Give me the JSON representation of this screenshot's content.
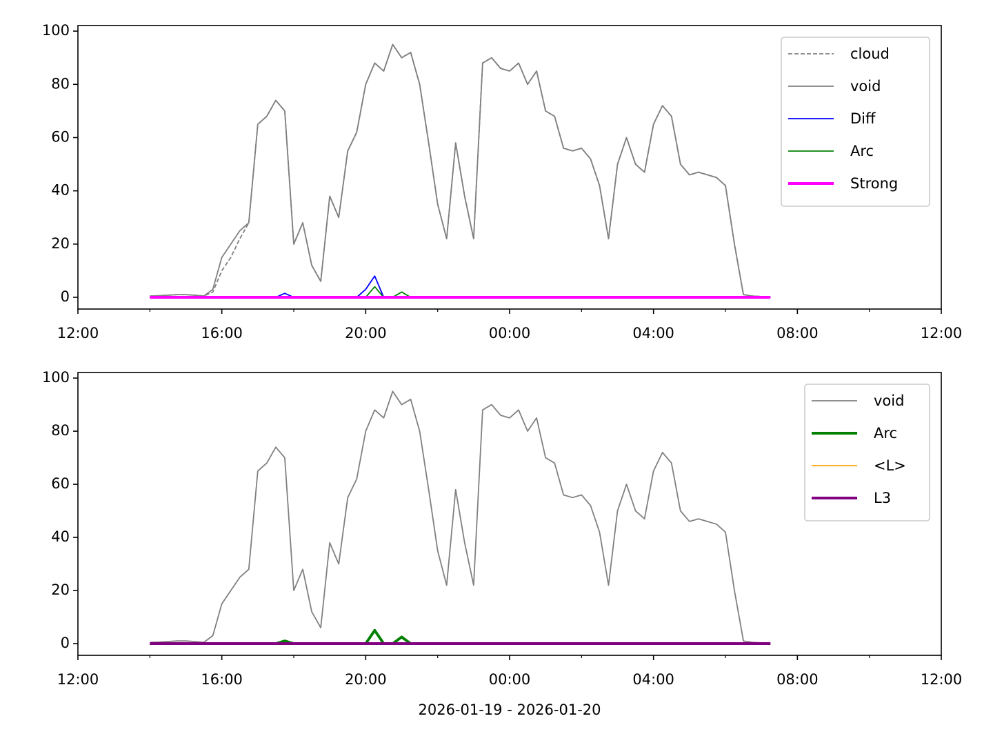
{
  "chart_data": [
    {
      "type": "line",
      "x": [
        "2026-01-19T14:00",
        "2026-01-19T14:15",
        "2026-01-19T14:30",
        "2026-01-19T14:45",
        "2026-01-19T15:00",
        "2026-01-19T15:15",
        "2026-01-19T15:30",
        "2026-01-19T15:45",
        "2026-01-19T16:00",
        "2026-01-19T16:15",
        "2026-01-19T16:30",
        "2026-01-19T16:45",
        "2026-01-19T17:00",
        "2026-01-19T17:15",
        "2026-01-19T17:30",
        "2026-01-19T17:45",
        "2026-01-19T18:00",
        "2026-01-19T18:15",
        "2026-01-19T18:30",
        "2026-01-19T18:45",
        "2026-01-19T19:00",
        "2026-01-19T19:15",
        "2026-01-19T19:30",
        "2026-01-19T19:45",
        "2026-01-19T20:00",
        "2026-01-19T20:15",
        "2026-01-19T20:30",
        "2026-01-19T20:45",
        "2026-01-19T21:00",
        "2026-01-19T21:15",
        "2026-01-19T21:30",
        "2026-01-19T21:45",
        "2026-01-19T22:00",
        "2026-01-19T22:15",
        "2026-01-19T22:30",
        "2026-01-19T22:45",
        "2026-01-19T23:00",
        "2026-01-19T23:15",
        "2026-01-19T23:30",
        "2026-01-19T23:45",
        "2026-01-20T00:00",
        "2026-01-20T00:15",
        "2026-01-20T00:30",
        "2026-01-20T00:45",
        "2026-01-20T01:00",
        "2026-01-20T01:15",
        "2026-01-20T01:30",
        "2026-01-20T01:45",
        "2026-01-20T02:00",
        "2026-01-20T02:15",
        "2026-01-20T02:30",
        "2026-01-20T02:45",
        "2026-01-20T03:00",
        "2026-01-20T03:15",
        "2026-01-20T03:30",
        "2026-01-20T03:45",
        "2026-01-20T04:00",
        "2026-01-20T04:15",
        "2026-01-20T04:30",
        "2026-01-20T04:45",
        "2026-01-20T05:00",
        "2026-01-20T05:15",
        "2026-01-20T05:30",
        "2026-01-20T05:45",
        "2026-01-20T06:00",
        "2026-01-20T06:15",
        "2026-01-20T06:30",
        "2026-01-20T06:45",
        "2026-01-20T07:00",
        "2026-01-20T07:15"
      ],
      "series": [
        {
          "name": "cloud",
          "color": "#808080",
          "linestyle": "dashed",
          "linewidth": 1.8,
          "values": [
            0.5,
            0.6,
            0.8,
            1,
            1,
            0.8,
            0.5,
            2,
            10,
            15,
            22,
            28,
            65,
            68,
            74,
            70,
            20,
            28,
            12,
            6,
            38,
            30,
            55,
            62,
            80,
            88,
            85,
            95,
            90,
            92,
            80,
            58,
            35,
            22,
            58,
            38,
            22,
            88,
            90,
            86,
            85,
            88,
            80,
            85,
            70,
            68,
            56,
            55,
            56,
            52,
            42,
            22,
            50,
            60,
            50,
            47,
            65,
            72,
            68,
            50,
            46,
            47,
            46,
            45,
            42,
            20,
            1,
            0.5,
            0.3,
            0.3
          ]
        },
        {
          "name": "void",
          "color": "#808080",
          "linestyle": "solid",
          "linewidth": 1.8,
          "values": [
            0.5,
            0.6,
            0.8,
            1,
            1,
            0.8,
            0.5,
            3,
            15,
            20,
            25,
            28,
            65,
            68,
            74,
            70,
            20,
            28,
            12,
            6,
            38,
            30,
            55,
            62,
            80,
            88,
            85,
            95,
            90,
            92,
            80,
            58,
            35,
            22,
            58,
            38,
            22,
            88,
            90,
            86,
            85,
            88,
            80,
            85,
            70,
            68,
            56,
            55,
            56,
            52,
            42,
            22,
            50,
            60,
            50,
            47,
            65,
            72,
            68,
            50,
            46,
            47,
            46,
            45,
            42,
            20,
            1,
            0.5,
            0.3,
            0.3
          ]
        },
        {
          "name": "Diff",
          "color": "#0000ff",
          "linestyle": "solid",
          "linewidth": 1.8,
          "values": [
            0,
            0,
            0,
            0,
            0,
            0,
            0,
            0,
            0,
            0,
            0,
            0,
            0,
            0,
            0,
            1.5,
            0,
            0,
            0,
            0,
            0,
            0,
            0,
            0,
            3,
            8,
            0,
            0,
            0,
            0,
            0,
            0,
            0,
            0,
            0,
            0,
            0,
            0,
            0,
            0,
            0,
            0,
            0,
            0,
            0,
            0,
            0,
            0,
            0,
            0,
            0,
            0,
            0,
            0,
            0,
            0,
            0,
            0,
            0,
            0,
            0,
            0,
            0,
            0,
            0,
            0,
            0,
            0,
            0,
            0
          ]
        },
        {
          "name": "Arc",
          "color": "#008000",
          "linestyle": "solid",
          "linewidth": 1.8,
          "values": [
            0,
            0,
            0,
            0,
            0,
            0,
            0,
            0,
            0,
            0,
            0,
            0,
            0,
            0,
            0,
            0,
            0,
            0,
            0,
            0,
            0,
            0,
            0,
            0,
            0,
            4,
            0,
            0,
            2,
            0,
            0,
            0,
            0,
            0,
            0,
            0,
            0,
            0,
            0,
            0,
            0,
            0,
            0,
            0,
            0,
            0,
            0,
            0,
            0,
            0,
            0,
            0,
            0,
            0,
            0,
            0,
            0,
            0,
            0,
            0,
            0,
            0,
            0,
            0,
            0,
            0,
            0,
            0,
            0,
            0
          ]
        },
        {
          "name": "Strong",
          "color": "#ff00ff",
          "linestyle": "solid",
          "linewidth": 4,
          "values": [
            0,
            0,
            0,
            0,
            0,
            0,
            0,
            0,
            0,
            0,
            0,
            0,
            0,
            0,
            0,
            0,
            0,
            0,
            0,
            0,
            0,
            0,
            0,
            0,
            0,
            0,
            0,
            0,
            0,
            0,
            0,
            0,
            0,
            0,
            0,
            0,
            0,
            0,
            0,
            0,
            0,
            0,
            0,
            0,
            0,
            0,
            0,
            0,
            0,
            0,
            0,
            0,
            0,
            0,
            0,
            0,
            0,
            0,
            0,
            0,
            0,
            0,
            0,
            0,
            0,
            0,
            0,
            0,
            0,
            0
          ]
        }
      ],
      "xlim": [
        "2026-01-19T12:00",
        "2026-01-20T12:00"
      ],
      "xticks": [
        {
          "value": "2026-01-19T12:00",
          "label": "12:00"
        },
        {
          "value": "2026-01-19T16:00",
          "label": "16:00"
        },
        {
          "value": "2026-01-19T20:00",
          "label": "20:00"
        },
        {
          "value": "2026-01-20T00:00",
          "label": "00:00"
        },
        {
          "value": "2026-01-20T04:00",
          "label": "04:00"
        },
        {
          "value": "2026-01-20T08:00",
          "label": "08:00"
        },
        {
          "value": "2026-01-20T12:00",
          "label": "12:00"
        }
      ],
      "xminorticks": [
        "2026-01-19T14:00",
        "2026-01-19T18:00",
        "2026-01-19T22:00",
        "2026-01-20T02:00",
        "2026-01-20T06:00",
        "2026-01-20T10:00"
      ],
      "ylim": [
        -4.4,
        102.1
      ],
      "yticks": [
        0,
        20,
        40,
        60,
        80,
        100
      ],
      "legend": "upper right"
    },
    {
      "type": "line",
      "x": [
        "2026-01-19T14:00",
        "2026-01-19T14:15",
        "2026-01-19T14:30",
        "2026-01-19T14:45",
        "2026-01-19T15:00",
        "2026-01-19T15:15",
        "2026-01-19T15:30",
        "2026-01-19T15:45",
        "2026-01-19T16:00",
        "2026-01-19T16:15",
        "2026-01-19T16:30",
        "2026-01-19T16:45",
        "2026-01-19T17:00",
        "2026-01-19T17:15",
        "2026-01-19T17:30",
        "2026-01-19T17:45",
        "2026-01-19T18:00",
        "2026-01-19T18:15",
        "2026-01-19T18:30",
        "2026-01-19T18:45",
        "2026-01-19T19:00",
        "2026-01-19T19:15",
        "2026-01-19T19:30",
        "2026-01-19T19:45",
        "2026-01-19T20:00",
        "2026-01-19T20:15",
        "2026-01-19T20:30",
        "2026-01-19T20:45",
        "2026-01-19T21:00",
        "2026-01-19T21:15",
        "2026-01-19T21:30",
        "2026-01-19T21:45",
        "2026-01-19T22:00",
        "2026-01-19T22:15",
        "2026-01-19T22:30",
        "2026-01-19T22:45",
        "2026-01-19T23:00",
        "2026-01-19T23:15",
        "2026-01-19T23:30",
        "2026-01-19T23:45",
        "2026-01-20T00:00",
        "2026-01-20T00:15",
        "2026-01-20T00:30",
        "2026-01-20T00:45",
        "2026-01-20T01:00",
        "2026-01-20T01:15",
        "2026-01-20T01:30",
        "2026-01-20T01:45",
        "2026-01-20T02:00",
        "2026-01-20T02:15",
        "2026-01-20T02:30",
        "2026-01-20T02:45",
        "2026-01-20T03:00",
        "2026-01-20T03:15",
        "2026-01-20T03:30",
        "2026-01-20T03:45",
        "2026-01-20T04:00",
        "2026-01-20T04:15",
        "2026-01-20T04:30",
        "2026-01-20T04:45",
        "2026-01-20T05:00",
        "2026-01-20T05:15",
        "2026-01-20T05:30",
        "2026-01-20T05:45",
        "2026-01-20T06:00",
        "2026-01-20T06:15",
        "2026-01-20T06:30",
        "2026-01-20T06:45",
        "2026-01-20T07:00",
        "2026-01-20T07:15"
      ],
      "series": [
        {
          "name": "void",
          "color": "#808080",
          "linestyle": "solid",
          "linewidth": 1.8,
          "values": [
            0.5,
            0.6,
            0.8,
            1,
            1,
            0.8,
            0.5,
            3,
            15,
            20,
            25,
            28,
            65,
            68,
            74,
            70,
            20,
            28,
            12,
            6,
            38,
            30,
            55,
            62,
            80,
            88,
            85,
            95,
            90,
            92,
            80,
            58,
            35,
            22,
            58,
            38,
            22,
            88,
            90,
            86,
            85,
            88,
            80,
            85,
            70,
            68,
            56,
            55,
            56,
            52,
            42,
            22,
            50,
            60,
            50,
            47,
            65,
            72,
            68,
            50,
            46,
            47,
            46,
            45,
            42,
            20,
            1,
            0.5,
            0.3,
            0.3
          ]
        },
        {
          "name": "Arc",
          "color": "#008000",
          "linestyle": "solid",
          "linewidth": 4,
          "values": [
            0,
            0,
            0,
            0,
            0,
            0,
            0,
            0,
            0,
            0,
            0,
            0,
            0,
            0,
            0,
            1,
            0,
            0,
            0,
            0,
            0,
            0,
            0,
            0,
            0,
            5,
            0,
            0,
            2.5,
            0,
            0,
            0,
            0,
            0,
            0,
            0,
            0,
            0,
            0,
            0,
            0,
            0,
            0,
            0,
            0,
            0,
            0,
            0,
            0,
            0,
            0,
            0,
            0,
            0,
            0,
            0,
            0,
            0,
            0,
            0,
            0,
            0,
            0,
            0,
            0,
            0,
            0,
            0,
            0,
            0
          ]
        },
        {
          "name": "<L>",
          "color": "#ffa500",
          "linestyle": "solid",
          "linewidth": 1.8,
          "values": [
            0,
            0,
            0,
            0,
            0,
            0,
            0,
            0,
            0,
            0,
            0,
            0,
            0,
            0,
            0,
            0,
            0,
            0,
            0,
            0,
            0,
            0,
            0,
            0,
            0,
            0,
            0,
            0,
            0,
            0,
            0,
            0,
            0,
            0,
            0,
            0,
            0,
            0,
            0,
            0,
            0,
            0,
            0,
            0,
            0,
            0,
            0,
            0,
            0,
            0,
            0,
            0,
            0,
            0,
            0,
            0,
            0,
            0,
            0,
            0,
            0,
            0,
            0,
            0,
            0,
            0,
            0,
            0,
            0,
            0
          ]
        },
        {
          "name": "L3",
          "color": "#800080",
          "linestyle": "solid",
          "linewidth": 4,
          "values": [
            0,
            0,
            0,
            0,
            0,
            0,
            0,
            0,
            0,
            0,
            0,
            0,
            0,
            0,
            0,
            0,
            0,
            0,
            0,
            0,
            0,
            0,
            0,
            0,
            0,
            0,
            0,
            0,
            0,
            0,
            0,
            0,
            0,
            0,
            0,
            0,
            0,
            0,
            0,
            0,
            0,
            0,
            0,
            0,
            0,
            0,
            0,
            0,
            0,
            0,
            0,
            0,
            0,
            0,
            0,
            0,
            0,
            0,
            0,
            0,
            0,
            0,
            0,
            0,
            0,
            0,
            0,
            0,
            0,
            0
          ]
        }
      ],
      "xlabel": "2026-01-19 - 2026-01-20",
      "xlim": [
        "2026-01-19T12:00",
        "2026-01-20T12:00"
      ],
      "xticks": [
        {
          "value": "2026-01-19T12:00",
          "label": "12:00"
        },
        {
          "value": "2026-01-19T16:00",
          "label": "16:00"
        },
        {
          "value": "2026-01-19T20:00",
          "label": "20:00"
        },
        {
          "value": "2026-01-20T00:00",
          "label": "00:00"
        },
        {
          "value": "2026-01-20T04:00",
          "label": "04:00"
        },
        {
          "value": "2026-01-20T08:00",
          "label": "08:00"
        },
        {
          "value": "2026-01-20T12:00",
          "label": "12:00"
        }
      ],
      "xminorticks": [
        "2026-01-19T14:00",
        "2026-01-19T18:00",
        "2026-01-19T22:00",
        "2026-01-20T02:00",
        "2026-01-20T06:00",
        "2026-01-20T10:00"
      ],
      "ylim": [
        -4.4,
        102.1
      ],
      "yticks": [
        0,
        20,
        40,
        60,
        80,
        100
      ],
      "legend": "upper right"
    }
  ]
}
